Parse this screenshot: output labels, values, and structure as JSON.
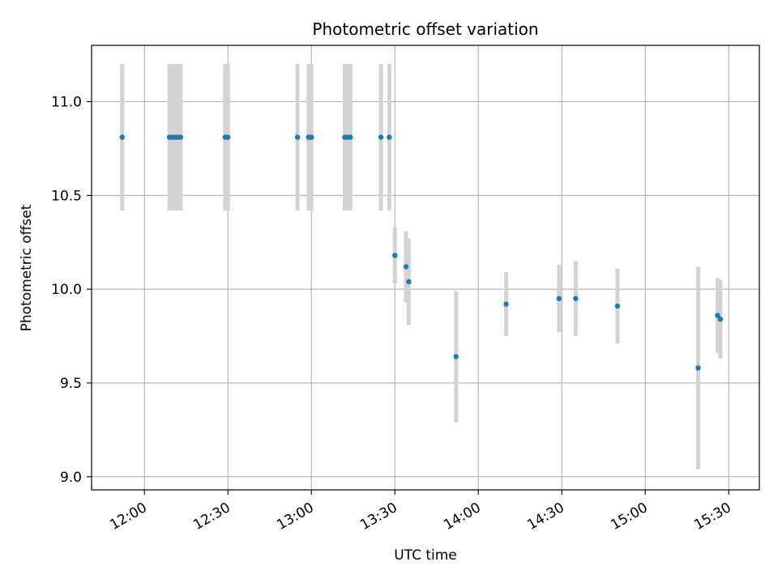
{
  "chart_data": {
    "type": "scatter",
    "title": "Photometric offset variation",
    "xlabel": "UTC time",
    "ylabel": "Photometric offset",
    "x_unit": "UTC time (HH:MM)",
    "xlim": [
      "11:41",
      "15:41"
    ],
    "ylim": [
      8.93,
      11.3
    ],
    "x_ticks": [
      "12:00",
      "12:30",
      "13:00",
      "13:30",
      "14:00",
      "14:30",
      "15:00",
      "15:30"
    ],
    "y_ticks": [
      9.0,
      9.5,
      10.0,
      10.5,
      11.0
    ],
    "y_tick_labels": [
      "9.0",
      "9.5",
      "10.0",
      "10.5",
      "11.0"
    ],
    "grid": true,
    "legend": "none",
    "colors": {
      "points": "#1f77b4",
      "errorbars": "#d3d3d3",
      "grid": "#b0b0b0",
      "axes": "#000000"
    },
    "points": [
      {
        "x": "11:52",
        "y": 10.81,
        "err": 0.39
      },
      {
        "x": "12:09",
        "y": 10.81,
        "err": 0.39
      },
      {
        "x": "12:10",
        "y": 10.81,
        "err": 0.39
      },
      {
        "x": "12:11",
        "y": 10.81,
        "err": 0.39
      },
      {
        "x": "12:12",
        "y": 10.81,
        "err": 0.39
      },
      {
        "x": "12:13",
        "y": 10.81,
        "err": 0.39
      },
      {
        "x": "12:29",
        "y": 10.81,
        "err": 0.39
      },
      {
        "x": "12:30",
        "y": 10.81,
        "err": 0.39
      },
      {
        "x": "12:55",
        "y": 10.81,
        "err": 0.39
      },
      {
        "x": "12:59",
        "y": 10.81,
        "err": 0.39
      },
      {
        "x": "13:00",
        "y": 10.81,
        "err": 0.39
      },
      {
        "x": "13:12",
        "y": 10.81,
        "err": 0.39
      },
      {
        "x": "13:13",
        "y": 10.81,
        "err": 0.39
      },
      {
        "x": "13:14",
        "y": 10.81,
        "err": 0.39
      },
      {
        "x": "13:25",
        "y": 10.81,
        "err": 0.39
      },
      {
        "x": "13:28",
        "y": 10.81,
        "err": 0.39
      },
      {
        "x": "13:30",
        "y": 10.18,
        "err": 0.15
      },
      {
        "x": "13:34",
        "y": 10.12,
        "err": 0.19
      },
      {
        "x": "13:35",
        "y": 10.04,
        "err": 0.23
      },
      {
        "x": "13:52",
        "y": 9.64,
        "err": 0.35
      },
      {
        "x": "14:10",
        "y": 9.92,
        "err": 0.17
      },
      {
        "x": "14:29",
        "y": 9.95,
        "err": 0.18
      },
      {
        "x": "14:35",
        "y": 9.95,
        "err": 0.2
      },
      {
        "x": "14:50",
        "y": 9.91,
        "err": 0.2
      },
      {
        "x": "15:19",
        "y": 9.58,
        "err": 0.54
      },
      {
        "x": "15:26",
        "y": 9.86,
        "err": 0.2
      },
      {
        "x": "15:27",
        "y": 9.84,
        "err": 0.21
      }
    ]
  }
}
